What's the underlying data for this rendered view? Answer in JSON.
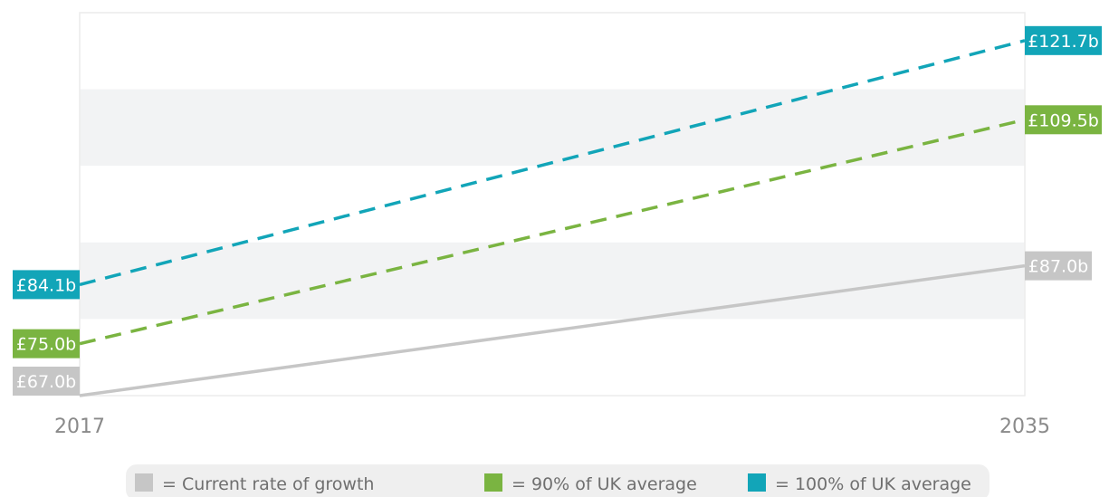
{
  "chart_data": {
    "type": "line",
    "x": [
      "2017",
      "2035"
    ],
    "series": [
      {
        "name": "= Current rate of growth",
        "color": "#c6c6c6",
        "style": "solid",
        "values": [
          67.0,
          87.0
        ],
        "labels": [
          "£67.0b",
          "£87.0b"
        ]
      },
      {
        "name": "= 90% of UK average",
        "color": "#7ab441",
        "style": "dashed",
        "values": [
          75.0,
          109.5
        ],
        "labels": [
          "£75.0b",
          "£109.5b"
        ]
      },
      {
        "name": "= 100% of UK average",
        "color": "#12a5b8",
        "style": "dashed",
        "values": [
          84.1,
          121.7
        ],
        "labels": [
          "£84.1b",
          "£121.7b"
        ]
      }
    ],
    "ylim": [
      67.0,
      126.0
    ],
    "title": "",
    "xlabel": "",
    "ylabel": "",
    "grid": "alternating horizontal bands",
    "legend_position": "bottom"
  }
}
